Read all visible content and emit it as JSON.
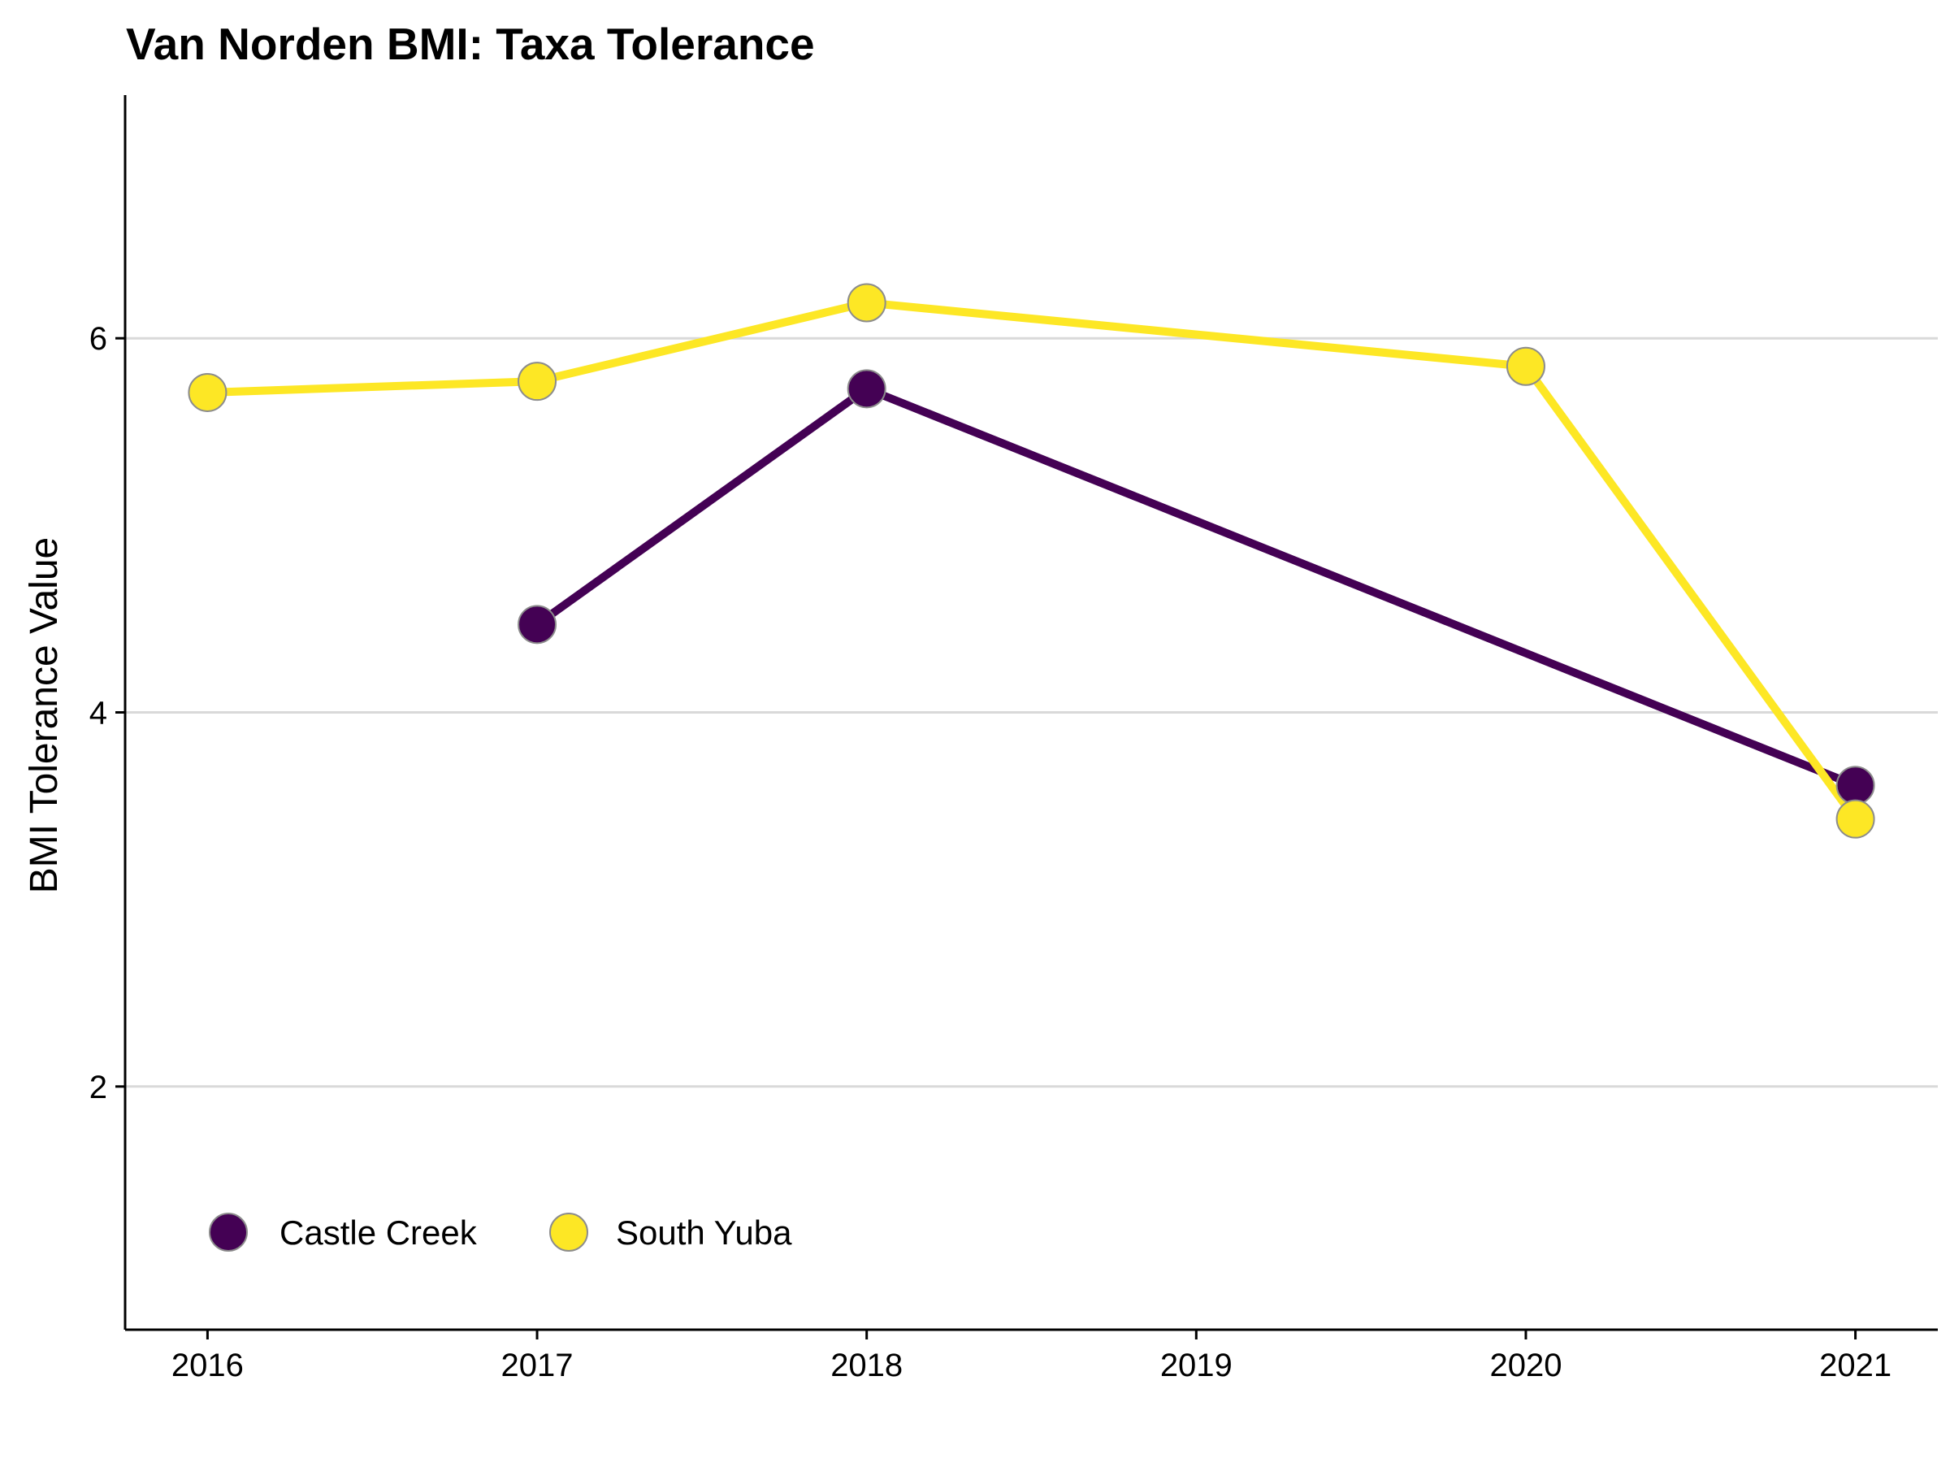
{
  "chart_data": {
    "type": "line",
    "title": "Van Norden BMI: Taxa Tolerance",
    "xlabel": "",
    "ylabel": "BMI Tolerance Value",
    "x": [
      2016,
      2017,
      2018,
      2019,
      2020,
      2021
    ],
    "x_tick_labels": [
      "2016",
      "2017",
      "2018",
      "2019",
      "2020",
      "2021"
    ],
    "xlim": [
      2015.75,
      2021.25
    ],
    "y_ticks": [
      2,
      4,
      6
    ],
    "y_tick_labels": [
      "2",
      "4",
      "6"
    ],
    "ylim": [
      0.7,
      7.3
    ],
    "grid": "horizontal major",
    "legend_position": "bottom-left inside",
    "series": [
      {
        "name": "Castle Creek",
        "color": "#440154",
        "points": [
          {
            "x": 2017,
            "y": 4.47
          },
          {
            "x": 2018,
            "y": 5.73
          },
          {
            "x": 2021,
            "y": 3.61
          }
        ]
      },
      {
        "name": "South Yuba",
        "color": "#FDE725",
        "points": [
          {
            "x": 2016,
            "y": 5.71
          },
          {
            "x": 2017,
            "y": 5.77
          },
          {
            "x": 2018,
            "y": 6.19
          },
          {
            "x": 2020,
            "y": 5.85
          },
          {
            "x": 2021,
            "y": 3.43
          }
        ]
      }
    ],
    "marker_edge_color": "#8c8c8c"
  }
}
